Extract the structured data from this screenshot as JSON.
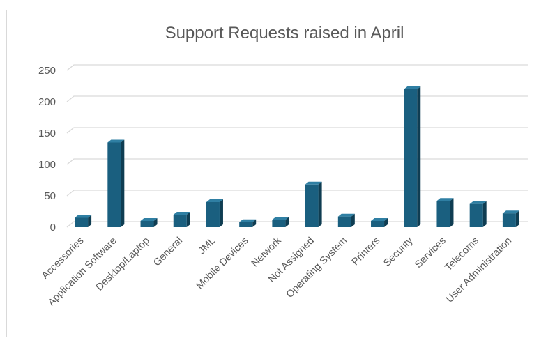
{
  "chart_data": {
    "type": "bar",
    "title": "Support Requests raised in April",
    "categories": [
      "Accessories",
      "Application Software",
      "Desktop/Laptop",
      "General",
      "JML",
      "Mobile Devices",
      "Network",
      "Not Assigned",
      "Operating System",
      "Printers",
      "Security",
      "Services",
      "Telecoms",
      "User Administration"
    ],
    "values": [
      15,
      135,
      10,
      20,
      40,
      8,
      12,
      68,
      17,
      10,
      220,
      42,
      37,
      22
    ],
    "ylim": [
      0,
      250
    ],
    "yticks": [
      "0",
      "50",
      "100",
      "150",
      "200",
      "250"
    ],
    "grid": true,
    "legend": "none",
    "colors": {
      "front": "#1a5f7f",
      "side": "#0f3d52",
      "top": "#2f7fa3",
      "grid": "#d9d9d9"
    }
  }
}
